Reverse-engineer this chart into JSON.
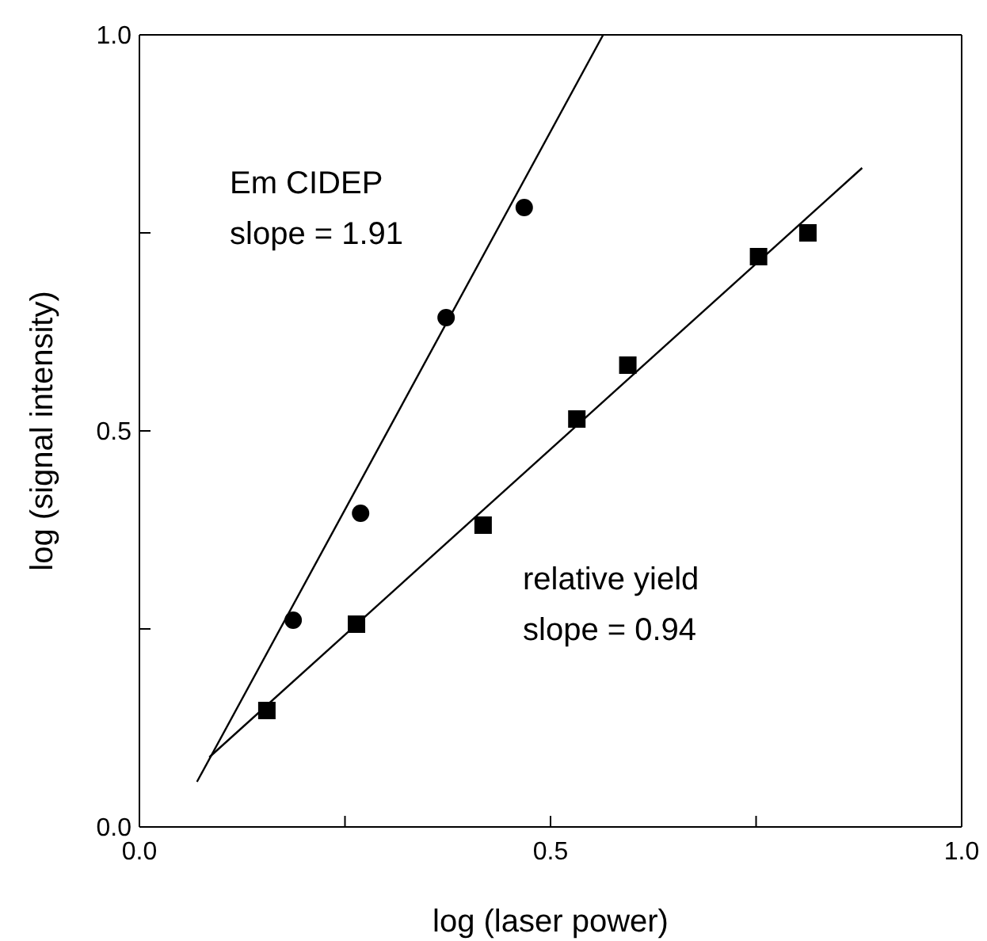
{
  "chart_data": {
    "type": "scatter",
    "xlabel": "log (laser power)",
    "ylabel": "log (signal intensity)",
    "series": [
      {
        "marker": "circle",
        "color": "#000000",
        "x": [
          0.187,
          0.269,
          0.373,
          0.468
        ],
        "values": [
          0.261,
          0.396,
          0.643,
          0.782
        ]
      },
      {
        "marker": "square",
        "color": "#000000",
        "x": [
          0.155,
          0.264,
          0.418,
          0.532,
          0.594,
          0.753,
          0.813
        ],
        "values": [
          0.147,
          0.256,
          0.381,
          0.515,
          0.583,
          0.72,
          0.75
        ]
      },
      {
        "type": "line",
        "marker": "none",
        "color": "#000000",
        "x": [
          0.07,
          0.564
        ],
        "values": [
          0.057,
          1.0
        ]
      },
      {
        "type": "line",
        "marker": "none",
        "color": "#000000",
        "x": [
          0.085,
          0.879
        ],
        "values": [
          0.088,
          0.832
        ]
      }
    ],
    "annotations": [
      "Em CIDEP\nslope = 1.91",
      "relative yield\nslope = 0.94"
    ],
    "xlim": [
      0,
      1
    ],
    "ylim": [
      0,
      1
    ],
    "xticks": [
      {
        "value": 0,
        "label": "0.0"
      },
      {
        "value": 0.25,
        "label": null
      },
      0.5,
      {
        "value": 0.75,
        "label": null
      },
      {
        "value": 1,
        "label": "1.0"
      }
    ],
    "yticks": [
      {
        "value": 0,
        "label": "0.0"
      },
      {
        "value": 0.25,
        "label": null
      },
      0.5,
      {
        "value": 0.75,
        "label": null
      },
      {
        "value": 1,
        "label": "1.0"
      }
    ],
    "grid": false,
    "legend": false
  }
}
